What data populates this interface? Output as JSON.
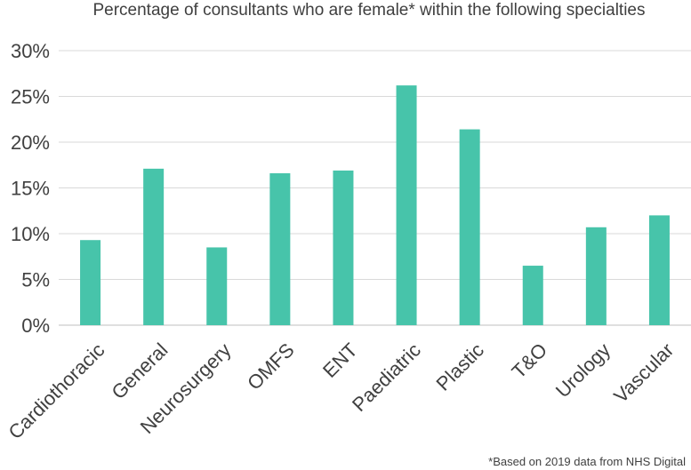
{
  "chart_data": {
    "type": "bar",
    "title": "Percentage of consultants who are female* within the following specialties",
    "xlabel": "",
    "ylabel": "",
    "categories": [
      "Cardiothoracic",
      "General",
      "Neurosurgery",
      "OMFS",
      "ENT",
      "Paediatric",
      "Plastic",
      "T&O",
      "Urology",
      "Vascular"
    ],
    "values": [
      9.3,
      17.1,
      8.5,
      16.6,
      16.9,
      26.2,
      21.4,
      6.5,
      10.7,
      12.0
    ],
    "ylim": [
      0,
      30
    ],
    "yticks": [
      0,
      5,
      10,
      15,
      20,
      25,
      30
    ],
    "ytick_labels": [
      "0%",
      "5%",
      "10%",
      "15%",
      "20%",
      "25%",
      "30%"
    ],
    "bar_color": "#47c4aa",
    "grid": true,
    "legend": "none",
    "footnote": "*Based on 2019 data from NHS Digital"
  }
}
